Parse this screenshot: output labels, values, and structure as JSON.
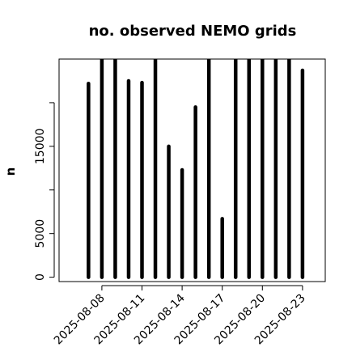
{
  "chart_data": {
    "type": "bar",
    "title": "no. observed NEMO grids",
    "xlabel": "",
    "ylabel": "n",
    "x_tick_labels": [
      "2025-08-08",
      "2025-08-11",
      "2025-08-14",
      "2025-08-17",
      "2025-08-20",
      "2025-08-23"
    ],
    "x_tick_days": [
      8,
      11,
      14,
      17,
      20,
      23
    ],
    "y_ticks": [
      0,
      5000,
      10000,
      15000,
      20000
    ],
    "y_tick_labels": [
      "0",
      "5000",
      "",
      "15000",
      ""
    ],
    "xlim_days": [
      4.8,
      24.7
    ],
    "ylim": [
      -500,
      25000
    ],
    "grid": false,
    "legend": "none",
    "bar_color": "#000000",
    "dates": [
      "2025-08-07",
      "2025-08-08",
      "2025-08-09",
      "2025-08-10",
      "2025-08-11",
      "2025-08-12",
      "2025-08-13",
      "2025-08-14",
      "2025-08-15",
      "2025-08-16",
      "2025-08-17",
      "2025-08-18",
      "2025-08-19",
      "2025-08-20",
      "2025-08-21",
      "2025-08-22",
      "2025-08-23"
    ],
    "days": [
      7,
      8,
      9,
      10,
      11,
      12,
      13,
      14,
      15,
      16,
      17,
      18,
      19,
      20,
      21,
      22,
      23
    ],
    "values": [
      22200,
      25000,
      25000,
      22500,
      22300,
      25000,
      15000,
      12300,
      19500,
      25000,
      6700,
      25000,
      25000,
      25000,
      25000,
      25000,
      23700
    ],
    "values_note": "bars at 25000 extend past the top of the plotting area"
  }
}
